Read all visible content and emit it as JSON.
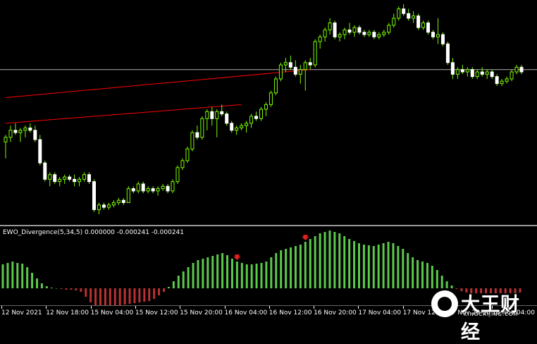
{
  "indicator": {
    "label": "EWO_Divergence(5,34,5) 0.000000 -0.000241 -0.000241"
  },
  "time_axis": {
    "labels": [
      "12 Nov 2021",
      "12 Nov 18:00",
      "15 Nov 04:00",
      "15 Nov 12:00",
      "15 Nov 20:00",
      "16 Nov 04:00",
      "16 Nov 12:00",
      "16 Nov 20:00",
      "17 Nov 04:00",
      "17 Nov 12:00",
      "17 Nov 20:00",
      "18 Nov 04:00"
    ]
  },
  "colors": {
    "bull_candle": "#7CFC00",
    "bear_candle": "#ffffff",
    "wick": "#7CFC00",
    "trendline": "#ff0000",
    "hline": "#b0b0b0",
    "hist_up": "#5cc94c",
    "hist_down": "#b83232",
    "arrow": "#e02020"
  },
  "watermark": {
    "text": "大王财经",
    "url": "KINGCAIJING.COM"
  },
  "chart_data": [
    {
      "type": "candlestick",
      "title": "",
      "price_min": 0,
      "price_max": 100,
      "candles": [
        {
          "o": 55,
          "h": 58,
          "l": 48,
          "c": 57
        },
        {
          "o": 57,
          "h": 62,
          "l": 55,
          "c": 60
        },
        {
          "o": 60,
          "h": 63,
          "l": 58,
          "c": 59
        },
        {
          "o": 59,
          "h": 61,
          "l": 55,
          "c": 60
        },
        {
          "o": 60,
          "h": 62,
          "l": 57,
          "c": 61
        },
        {
          "o": 61,
          "h": 63,
          "l": 59,
          "c": 60
        },
        {
          "o": 60,
          "h": 62,
          "l": 55,
          "c": 56
        },
        {
          "o": 56,
          "h": 58,
          "l": 45,
          "c": 46
        },
        {
          "o": 46,
          "h": 47,
          "l": 38,
          "c": 39
        },
        {
          "o": 39,
          "h": 42,
          "l": 36,
          "c": 41
        },
        {
          "o": 41,
          "h": 42,
          "l": 37,
          "c": 38
        },
        {
          "o": 38,
          "h": 40,
          "l": 36,
          "c": 39
        },
        {
          "o": 39,
          "h": 41,
          "l": 37,
          "c": 40
        },
        {
          "o": 40,
          "h": 41,
          "l": 38,
          "c": 39
        },
        {
          "o": 39,
          "h": 41,
          "l": 36,
          "c": 38
        },
        {
          "o": 38,
          "h": 40,
          "l": 36,
          "c": 39
        },
        {
          "o": 39,
          "h": 42,
          "l": 38,
          "c": 41
        },
        {
          "o": 41,
          "h": 42,
          "l": 37,
          "c": 38
        },
        {
          "o": 38,
          "h": 39,
          "l": 25,
          "c": 26
        },
        {
          "o": 26,
          "h": 29,
          "l": 24,
          "c": 28
        },
        {
          "o": 28,
          "h": 29,
          "l": 26,
          "c": 27
        },
        {
          "o": 27,
          "h": 29,
          "l": 26,
          "c": 28
        },
        {
          "o": 28,
          "h": 30,
          "l": 27,
          "c": 29
        },
        {
          "o": 29,
          "h": 31,
          "l": 28,
          "c": 30
        },
        {
          "o": 30,
          "h": 31,
          "l": 28,
          "c": 29
        },
        {
          "o": 29,
          "h": 36,
          "l": 29,
          "c": 35
        },
        {
          "o": 35,
          "h": 36,
          "l": 33,
          "c": 34
        },
        {
          "o": 34,
          "h": 38,
          "l": 33,
          "c": 37
        },
        {
          "o": 37,
          "h": 38,
          "l": 33,
          "c": 34
        },
        {
          "o": 34,
          "h": 36,
          "l": 33,
          "c": 35
        },
        {
          "o": 35,
          "h": 36,
          "l": 33,
          "c": 34
        },
        {
          "o": 34,
          "h": 36,
          "l": 32,
          "c": 35
        },
        {
          "o": 35,
          "h": 37,
          "l": 34,
          "c": 36
        },
        {
          "o": 36,
          "h": 37,
          "l": 33,
          "c": 34
        },
        {
          "o": 34,
          "h": 39,
          "l": 33,
          "c": 38
        },
        {
          "o": 38,
          "h": 45,
          "l": 37,
          "c": 44
        },
        {
          "o": 44,
          "h": 48,
          "l": 43,
          "c": 47
        },
        {
          "o": 47,
          "h": 53,
          "l": 46,
          "c": 52
        },
        {
          "o": 52,
          "h": 60,
          "l": 51,
          "c": 59
        },
        {
          "o": 59,
          "h": 62,
          "l": 56,
          "c": 57
        },
        {
          "o": 57,
          "h": 66,
          "l": 56,
          "c": 65
        },
        {
          "o": 65,
          "h": 69,
          "l": 60,
          "c": 68
        },
        {
          "o": 68,
          "h": 70,
          "l": 62,
          "c": 65
        },
        {
          "o": 65,
          "h": 69,
          "l": 57,
          "c": 68
        },
        {
          "o": 68,
          "h": 71,
          "l": 66,
          "c": 67
        },
        {
          "o": 67,
          "h": 68,
          "l": 62,
          "c": 63
        },
        {
          "o": 63,
          "h": 64,
          "l": 59,
          "c": 60
        },
        {
          "o": 60,
          "h": 62,
          "l": 58,
          "c": 61
        },
        {
          "o": 61,
          "h": 63,
          "l": 60,
          "c": 62
        },
        {
          "o": 62,
          "h": 64,
          "l": 59,
          "c": 63
        },
        {
          "o": 63,
          "h": 67,
          "l": 61,
          "c": 66
        },
        {
          "o": 66,
          "h": 68,
          "l": 64,
          "c": 65
        },
        {
          "o": 65,
          "h": 70,
          "l": 64,
          "c": 69
        },
        {
          "o": 69,
          "h": 72,
          "l": 66,
          "c": 71
        },
        {
          "o": 71,
          "h": 77,
          "l": 70,
          "c": 76
        },
        {
          "o": 76,
          "h": 83,
          "l": 75,
          "c": 82
        },
        {
          "o": 82,
          "h": 89,
          "l": 81,
          "c": 88
        },
        {
          "o": 88,
          "h": 91,
          "l": 85,
          "c": 89
        },
        {
          "o": 89,
          "h": 92,
          "l": 86,
          "c": 87
        },
        {
          "o": 87,
          "h": 90,
          "l": 83,
          "c": 84
        },
        {
          "o": 84,
          "h": 88,
          "l": 80,
          "c": 86
        },
        {
          "o": 86,
          "h": 90,
          "l": 77,
          "c": 89
        },
        {
          "o": 89,
          "h": 91,
          "l": 86,
          "c": 88
        },
        {
          "o": 88,
          "h": 99,
          "l": 87,
          "c": 98
        },
        {
          "o": 98,
          "h": 101,
          "l": 95,
          "c": 100
        },
        {
          "o": 100,
          "h": 104,
          "l": 98,
          "c": 103
        },
        {
          "o": 103,
          "h": 108,
          "l": 101,
          "c": 106
        },
        {
          "o": 106,
          "h": 107,
          "l": 99,
          "c": 100
        },
        {
          "o": 100,
          "h": 102,
          "l": 98,
          "c": 101
        },
        {
          "o": 101,
          "h": 104,
          "l": 99,
          "c": 103
        },
        {
          "o": 103,
          "h": 106,
          "l": 101,
          "c": 102
        },
        {
          "o": 102,
          "h": 105,
          "l": 100,
          "c": 104
        },
        {
          "o": 104,
          "h": 105,
          "l": 101,
          "c": 102
        },
        {
          "o": 102,
          "h": 103,
          "l": 100,
          "c": 101
        },
        {
          "o": 101,
          "h": 103,
          "l": 100,
          "c": 102
        },
        {
          "o": 102,
          "h": 103,
          "l": 99,
          "c": 100
        },
        {
          "o": 100,
          "h": 102,
          "l": 99,
          "c": 101
        },
        {
          "o": 101,
          "h": 103,
          "l": 100,
          "c": 102
        },
        {
          "o": 102,
          "h": 106,
          "l": 101,
          "c": 105
        },
        {
          "o": 105,
          "h": 110,
          "l": 104,
          "c": 108
        },
        {
          "o": 108,
          "h": 113,
          "l": 107,
          "c": 112
        },
        {
          "o": 112,
          "h": 114,
          "l": 109,
          "c": 110
        },
        {
          "o": 110,
          "h": 112,
          "l": 107,
          "c": 108
        },
        {
          "o": 108,
          "h": 111,
          "l": 106,
          "c": 109
        },
        {
          "o": 109,
          "h": 110,
          "l": 103,
          "c": 104
        },
        {
          "o": 104,
          "h": 107,
          "l": 103,
          "c": 106
        },
        {
          "o": 106,
          "h": 107,
          "l": 101,
          "c": 102
        },
        {
          "o": 102,
          "h": 103,
          "l": 99,
          "c": 100
        },
        {
          "o": 100,
          "h": 108,
          "l": 97,
          "c": 101
        },
        {
          "o": 101,
          "h": 102,
          "l": 96,
          "c": 97
        },
        {
          "o": 97,
          "h": 98,
          "l": 88,
          "c": 89
        },
        {
          "o": 89,
          "h": 91,
          "l": 82,
          "c": 84
        },
        {
          "o": 84,
          "h": 87,
          "l": 82,
          "c": 86
        },
        {
          "o": 86,
          "h": 88,
          "l": 84,
          "c": 85
        },
        {
          "o": 85,
          "h": 87,
          "l": 83,
          "c": 86
        },
        {
          "o": 86,
          "h": 87,
          "l": 82,
          "c": 83
        },
        {
          "o": 83,
          "h": 86,
          "l": 82,
          "c": 85
        },
        {
          "o": 85,
          "h": 87,
          "l": 83,
          "c": 84
        },
        {
          "o": 84,
          "h": 86,
          "l": 82,
          "c": 85
        },
        {
          "o": 85,
          "h": 86,
          "l": 82,
          "c": 83
        },
        {
          "o": 83,
          "h": 84,
          "l": 79,
          "c": 80
        },
        {
          "o": 80,
          "h": 82,
          "l": 79,
          "c": 81
        },
        {
          "o": 81,
          "h": 83,
          "l": 80,
          "c": 82
        },
        {
          "o": 82,
          "h": 86,
          "l": 81,
          "c": 85
        },
        {
          "o": 85,
          "h": 88,
          "l": 84,
          "c": 87
        },
        {
          "o": 87,
          "h": 88,
          "l": 84,
          "c": 85
        }
      ],
      "horizontal_line": 86,
      "trendlines": [
        {
          "from_index": 0,
          "from_value": 74,
          "to_index": 62,
          "to_value": 86
        },
        {
          "from_index": 0,
          "from_value": 63,
          "to_index": 48,
          "to_value": 71
        }
      ]
    },
    {
      "type": "bar",
      "title": "EWO_Divergence(5,34,5)",
      "values": [
        34,
        36,
        38,
        36,
        35,
        30,
        22,
        14,
        7,
        3,
        1,
        0,
        -1,
        -2,
        -2,
        -3,
        -5,
        -12,
        -20,
        -25,
        -27,
        -27,
        -26,
        -25,
        -24,
        -23,
        -22,
        -21,
        -20,
        -19,
        -18,
        -15,
        -10,
        -5,
        2,
        10,
        18,
        24,
        30,
        36,
        40,
        42,
        44,
        46,
        48,
        50,
        47,
        42,
        38,
        36,
        34,
        34,
        35,
        36,
        38,
        44,
        50,
        54,
        56,
        58,
        60,
        62,
        66,
        70,
        74,
        78,
        80,
        82,
        80,
        78,
        74,
        70,
        67,
        64,
        62,
        61,
        60,
        62,
        64,
        66,
        64,
        60,
        56,
        50,
        44,
        40,
        38,
        36,
        32,
        26,
        18,
        10,
        4,
        -1,
        -4,
        -6,
        -7,
        -7,
        -7,
        -7,
        -7,
        -7,
        -7,
        -7,
        -7,
        -7,
        -6
      ],
      "arrows": [
        48,
        62
      ]
    }
  ]
}
